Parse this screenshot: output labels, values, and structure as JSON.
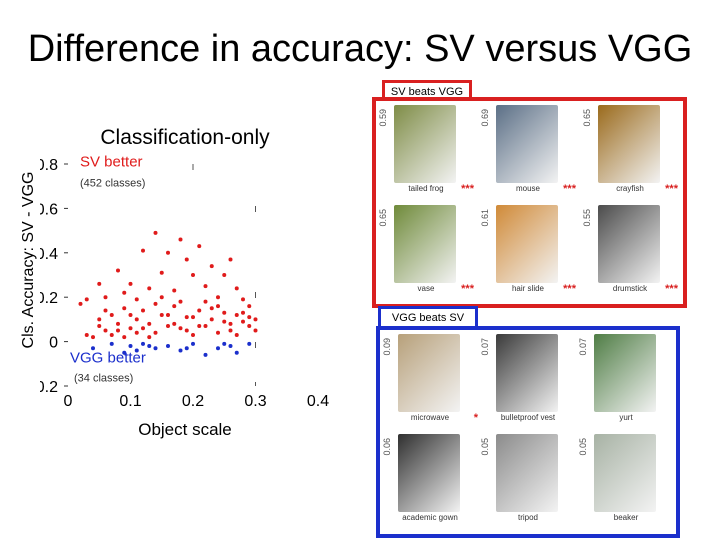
{
  "slide": {
    "title": "Difference in accuracy: SV versus VGG"
  },
  "chart_data": {
    "type": "scatter",
    "title": "Classification-only",
    "xlabel": "Object scale",
    "ylabel": "Cls. Accuracy: SV - VGG",
    "xlim": [
      0,
      0.4
    ],
    "ylim": [
      -0.2,
      0.8
    ],
    "xticks": [
      "0",
      "0.1",
      "0.2",
      "0.3",
      "0.4"
    ],
    "yticks": [
      "-0.2",
      "0",
      "0.2",
      "0.4",
      "0.6",
      "0.8"
    ],
    "grid": false,
    "annotations": {
      "sv_better": "SV better",
      "sv_count": "(452 classes)",
      "vgg_better": "VGG better",
      "vgg_count": "(34 classes)"
    },
    "series": [
      {
        "color": "#e01b1b",
        "points": [
          [
            0.02,
            0.17
          ],
          [
            0.03,
            0.03
          ],
          [
            0.03,
            0.19
          ],
          [
            0.04,
            0.02
          ],
          [
            0.05,
            0.26
          ],
          [
            0.05,
            0.1
          ],
          [
            0.06,
            0.05
          ],
          [
            0.06,
            0.2
          ],
          [
            0.07,
            0.12
          ],
          [
            0.07,
            0.03
          ],
          [
            0.08,
            0.32
          ],
          [
            0.08,
            0.08
          ],
          [
            0.09,
            0.15
          ],
          [
            0.09,
            0.02
          ],
          [
            0.1,
            0.26
          ],
          [
            0.1,
            0.06
          ],
          [
            0.11,
            0.19
          ],
          [
            0.11,
            0.1
          ],
          [
            0.12,
            0.41
          ],
          [
            0.12,
            0.06
          ],
          [
            0.13,
            0.08
          ],
          [
            0.13,
            0.24
          ],
          [
            0.14,
            0.49
          ],
          [
            0.14,
            0.04
          ],
          [
            0.15,
            0.31
          ],
          [
            0.15,
            0.12
          ],
          [
            0.16,
            0.4
          ],
          [
            0.16,
            0.07
          ],
          [
            0.17,
            0.23
          ],
          [
            0.17,
            0.16
          ],
          [
            0.18,
            0.46
          ],
          [
            0.18,
            0.06
          ],
          [
            0.19,
            0.37
          ],
          [
            0.19,
            0.11
          ],
          [
            0.2,
            0.3
          ],
          [
            0.2,
            0.03
          ],
          [
            0.21,
            0.43
          ],
          [
            0.21,
            0.14
          ],
          [
            0.22,
            0.25
          ],
          [
            0.22,
            0.07
          ],
          [
            0.23,
            0.34
          ],
          [
            0.23,
            0.1
          ],
          [
            0.24,
            0.2
          ],
          [
            0.24,
            0.04
          ],
          [
            0.25,
            0.3
          ],
          [
            0.25,
            0.13
          ],
          [
            0.26,
            0.37
          ],
          [
            0.26,
            0.08
          ],
          [
            0.27,
            0.24
          ],
          [
            0.27,
            0.03
          ],
          [
            0.28,
            0.19
          ],
          [
            0.28,
            0.09
          ],
          [
            0.29,
            0.16
          ],
          [
            0.29,
            0.07
          ],
          [
            0.3,
            0.1
          ],
          [
            0.3,
            0.05
          ],
          [
            0.06,
            0.14
          ],
          [
            0.09,
            0.22
          ],
          [
            0.12,
            0.14
          ],
          [
            0.15,
            0.2
          ],
          [
            0.18,
            0.18
          ],
          [
            0.21,
            0.07
          ],
          [
            0.24,
            0.16
          ],
          [
            0.27,
            0.12
          ],
          [
            0.1,
            0.12
          ],
          [
            0.14,
            0.17
          ],
          [
            0.19,
            0.05
          ],
          [
            0.22,
            0.18
          ],
          [
            0.25,
            0.09
          ],
          [
            0.28,
            0.13
          ],
          [
            0.13,
            0.02
          ],
          [
            0.17,
            0.08
          ],
          [
            0.2,
            0.11
          ],
          [
            0.23,
            0.15
          ],
          [
            0.26,
            0.05
          ],
          [
            0.29,
            0.11
          ],
          [
            0.11,
            0.04
          ],
          [
            0.16,
            0.12
          ],
          [
            0.08,
            0.05
          ],
          [
            0.05,
            0.07
          ]
        ]
      },
      {
        "color": "#1b2fcc",
        "points": [
          [
            0.04,
            -0.03
          ],
          [
            0.07,
            -0.01
          ],
          [
            0.09,
            -0.05
          ],
          [
            0.1,
            -0.02
          ],
          [
            0.12,
            -0.01
          ],
          [
            0.14,
            -0.03
          ],
          [
            0.16,
            -0.02
          ],
          [
            0.18,
            -0.04
          ],
          [
            0.2,
            -0.01
          ],
          [
            0.22,
            -0.06
          ],
          [
            0.24,
            -0.03
          ],
          [
            0.26,
            -0.02
          ],
          [
            0.27,
            -0.05
          ],
          [
            0.29,
            -0.01
          ],
          [
            0.13,
            -0.02
          ],
          [
            0.19,
            -0.03
          ],
          [
            0.25,
            -0.01
          ],
          [
            0.11,
            -0.04
          ]
        ]
      }
    ]
  },
  "sv_panel": {
    "label": "SV beats VGG",
    "accent": "#d92020",
    "items": [
      {
        "name": "tailed frog",
        "score": "0.59",
        "stars": "***",
        "color": "#7e8c46"
      },
      {
        "name": "mouse",
        "score": "0.69",
        "stars": "***",
        "color": "#5b6f86"
      },
      {
        "name": "crayfish",
        "score": "0.65",
        "stars": "***",
        "color": "#9a6a1c"
      },
      {
        "name": "vase",
        "score": "0.65",
        "stars": "***",
        "color": "#6f8a3a"
      },
      {
        "name": "hair slide",
        "score": "0.61",
        "stars": "***",
        "color": "#d08a38"
      },
      {
        "name": "drumstick",
        "score": "0.55",
        "stars": "***",
        "color": "#4b4b4b"
      }
    ]
  },
  "vgg_panel": {
    "label": "VGG beats SV",
    "accent": "#1b2fcc",
    "items": [
      {
        "name": "microwave",
        "score": "0.09",
        "stars": "*",
        "color": "#b7a07a"
      },
      {
        "name": "bulletproof vest",
        "score": "0.07",
        "stars": "",
        "color": "#3a3a3a"
      },
      {
        "name": "yurt",
        "score": "0.07",
        "stars": "",
        "color": "#4f7d45"
      },
      {
        "name": "academic gown",
        "score": "0.06",
        "stars": "",
        "color": "#2f2f2f"
      },
      {
        "name": "tripod",
        "score": "0.05",
        "stars": "",
        "color": "#8b8b8b"
      },
      {
        "name": "beaker",
        "score": "0.05",
        "stars": "",
        "color": "#a7b2a4"
      }
    ]
  }
}
